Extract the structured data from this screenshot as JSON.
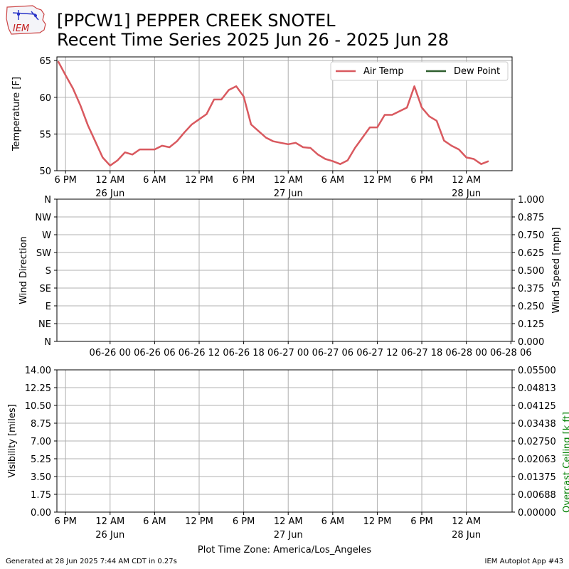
{
  "header": {
    "title_line1": "[PPCW1] PEPPER CREEK SNOTEL",
    "title_line2": "Recent Time Series 2025 Jun 26 - 2025 Jun 28",
    "logo_text": "IEM"
  },
  "footer": {
    "generated": "Generated at 28 Jun 2025 7:44 AM CDT in 0.27s",
    "app": "IEM Autoplot App #43"
  },
  "colors": {
    "air_temp": "#d9595f",
    "dew_point": "#2e5e2e",
    "ceiling_label": "#008000",
    "grid": "#b0b0b0"
  },
  "chart_data": [
    {
      "type": "line",
      "ylabel": "Temperature [F]",
      "ylim": [
        50,
        65.5
      ],
      "yticks": [
        50,
        55,
        60,
        65
      ],
      "grid": true,
      "legend_position": "top-right",
      "x_time_range": [
        "2025-06-25 16:50",
        "2025-06-28 06:10"
      ],
      "xticks": [
        {
          "t": "2025-06-25 18:00",
          "label": "6 PM",
          "sub": ""
        },
        {
          "t": "2025-06-26 00:00",
          "label": "12 AM",
          "sub": "26 Jun"
        },
        {
          "t": "2025-06-26 06:00",
          "label": "6 AM",
          "sub": ""
        },
        {
          "t": "2025-06-26 12:00",
          "label": "12 PM",
          "sub": ""
        },
        {
          "t": "2025-06-26 18:00",
          "label": "6 PM",
          "sub": ""
        },
        {
          "t": "2025-06-27 00:00",
          "label": "12 AM",
          "sub": "27 Jun"
        },
        {
          "t": "2025-06-27 06:00",
          "label": "6 AM",
          "sub": ""
        },
        {
          "t": "2025-06-27 12:00",
          "label": "12 PM",
          "sub": ""
        },
        {
          "t": "2025-06-27 18:00",
          "label": "6 PM",
          "sub": ""
        },
        {
          "t": "2025-06-28 00:00",
          "label": "12 AM",
          "sub": "28 Jun"
        }
      ],
      "series": [
        {
          "name": "Air Temp",
          "points": [
            [
              "2025-06-25 17:00",
              64.9
            ],
            [
              "2025-06-25 18:00",
              63.0
            ],
            [
              "2025-06-25 19:00",
              61.2
            ],
            [
              "2025-06-25 20:00",
              58.9
            ],
            [
              "2025-06-25 21:00",
              56.2
            ],
            [
              "2025-06-25 22:00",
              54.0
            ],
            [
              "2025-06-25 23:00",
              51.8
            ],
            [
              "2025-06-26 00:00",
              50.7
            ],
            [
              "2025-06-26 01:00",
              51.4
            ],
            [
              "2025-06-26 02:00",
              52.5
            ],
            [
              "2025-06-26 03:00",
              52.2
            ],
            [
              "2025-06-26 04:00",
              52.9
            ],
            [
              "2025-06-26 05:00",
              52.9
            ],
            [
              "2025-06-26 06:00",
              52.9
            ],
            [
              "2025-06-26 07:00",
              53.4
            ],
            [
              "2025-06-26 08:00",
              53.2
            ],
            [
              "2025-06-26 09:00",
              54.0
            ],
            [
              "2025-06-26 10:00",
              55.2
            ],
            [
              "2025-06-26 11:00",
              56.3
            ],
            [
              "2025-06-26 12:00",
              57.0
            ],
            [
              "2025-06-26 13:00",
              57.7
            ],
            [
              "2025-06-26 14:00",
              59.7
            ],
            [
              "2025-06-26 15:00",
              59.7
            ],
            [
              "2025-06-26 16:00",
              61.0
            ],
            [
              "2025-06-26 17:00",
              61.5
            ],
            [
              "2025-06-26 18:00",
              60.1
            ],
            [
              "2025-06-26 19:00",
              56.3
            ],
            [
              "2025-06-26 20:00",
              55.4
            ],
            [
              "2025-06-26 21:00",
              54.5
            ],
            [
              "2025-06-26 22:00",
              54.0
            ],
            [
              "2025-06-26 23:00",
              53.8
            ],
            [
              "2025-06-27 00:00",
              53.6
            ],
            [
              "2025-06-27 01:00",
              53.8
            ],
            [
              "2025-06-27 02:00",
              53.2
            ],
            [
              "2025-06-27 03:00",
              53.1
            ],
            [
              "2025-06-27 04:00",
              52.2
            ],
            [
              "2025-06-27 05:00",
              51.6
            ],
            [
              "2025-06-27 06:00",
              51.3
            ],
            [
              "2025-06-27 07:00",
              50.9
            ],
            [
              "2025-06-27 08:00",
              51.4
            ],
            [
              "2025-06-27 09:00",
              53.1
            ],
            [
              "2025-06-27 10:00",
              54.5
            ],
            [
              "2025-06-27 11:00",
              55.9
            ],
            [
              "2025-06-27 12:00",
              55.9
            ],
            [
              "2025-06-27 13:00",
              57.6
            ],
            [
              "2025-06-27 14:00",
              57.6
            ],
            [
              "2025-06-27 15:00",
              58.1
            ],
            [
              "2025-06-27 16:00",
              58.6
            ],
            [
              "2025-06-27 17:00",
              61.5
            ],
            [
              "2025-06-27 18:00",
              58.6
            ],
            [
              "2025-06-27 19:00",
              57.4
            ],
            [
              "2025-06-27 20:00",
              56.8
            ],
            [
              "2025-06-27 21:00",
              54.1
            ],
            [
              "2025-06-27 22:00",
              53.4
            ],
            [
              "2025-06-27 23:00",
              52.9
            ],
            [
              "2025-06-28 00:00",
              51.8
            ],
            [
              "2025-06-28 01:00",
              51.6
            ],
            [
              "2025-06-28 02:00",
              50.9
            ],
            [
              "2025-06-28 03:00",
              51.3
            ]
          ]
        },
        {
          "name": "Dew Point",
          "points": []
        }
      ]
    },
    {
      "type": "line",
      "ylabel": "Wind Direction",
      "ylabel_right": "Wind Speed [mph]",
      "yticks_left": [
        "N",
        "NE",
        "E",
        "SE",
        "S",
        "SW",
        "W",
        "NW",
        "N"
      ],
      "yticks_right": [
        "0.000",
        "0.125",
        "0.250",
        "0.375",
        "0.500",
        "0.625",
        "0.750",
        "0.875",
        "1.000"
      ],
      "ylim_right": [
        0,
        1
      ],
      "grid": true,
      "xticks": [
        {
          "t": "2025-06-26 00:00",
          "label": "06-26 00"
        },
        {
          "t": "2025-06-26 06:00",
          "label": "06-26 06"
        },
        {
          "t": "2025-06-26 12:00",
          "label": "06-26 12"
        },
        {
          "t": "2025-06-26 18:00",
          "label": "06-26 18"
        },
        {
          "t": "2025-06-27 00:00",
          "label": "06-27 00"
        },
        {
          "t": "2025-06-27 06:00",
          "label": "06-27 06"
        },
        {
          "t": "2025-06-27 12:00",
          "label": "06-27 12"
        },
        {
          "t": "2025-06-27 18:00",
          "label": "06-27 18"
        },
        {
          "t": "2025-06-28 00:00",
          "label": "06-28 00"
        },
        {
          "t": "2025-06-28 06:00",
          "label": "06-28 06"
        }
      ],
      "series": []
    },
    {
      "type": "line",
      "ylabel": "Visibility [miles]",
      "ylabel_right": "Overcast Ceiling [k ft]",
      "yticks_left": [
        "0.00",
        "1.75",
        "3.50",
        "5.25",
        "7.00",
        "8.75",
        "10.50",
        "12.25",
        "14.00"
      ],
      "yticks_right": [
        "0.00000",
        "0.00688",
        "0.01375",
        "0.02063",
        "0.02750",
        "0.03438",
        "0.04125",
        "0.04813",
        "0.05500"
      ],
      "ylim": [
        0,
        14
      ],
      "ylim_right": [
        0,
        0.055
      ],
      "xlabel": "Plot Time Zone: America/Los_Angeles",
      "grid": true,
      "xticks_ref": 0,
      "series": []
    }
  ]
}
